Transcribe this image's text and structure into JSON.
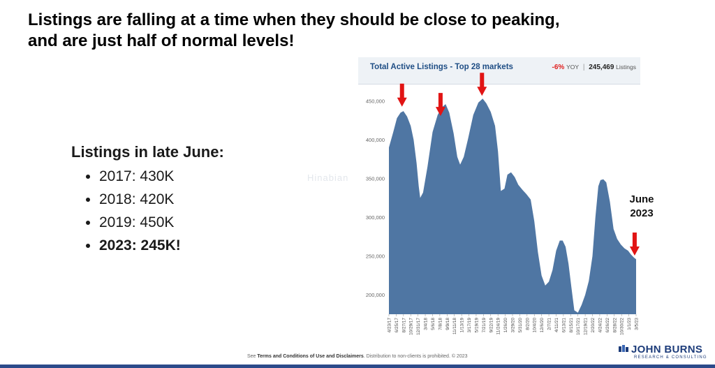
{
  "slide": {
    "title_line1": "Listings are falling at a time when they should be close to peaking,",
    "title_line2": "and are just half of normal levels!",
    "bullets_heading": "Listings in late June:",
    "bullets": [
      {
        "text": "2017: 430K",
        "bold": false
      },
      {
        "text": "2018: 420K",
        "bold": false
      },
      {
        "text": "2019: 450K",
        "bold": false
      },
      {
        "text": "2023: 245K!",
        "bold": true
      }
    ],
    "annotation": [
      "June",
      "2023"
    ],
    "watermark": "Hinabian",
    "footer_prefix": "See ",
    "footer_terms": "Terms and Conditions of Use and Disclaimers",
    "footer_suffix": ". Distribution to non-clients is prohibited. © 2023",
    "logo_name": "JOHN BURNS",
    "logo_tag": "RESEARCH & CONSULTING",
    "colors": {
      "area": "#4f76a3",
      "arrow": "#e11414",
      "panel": "#eef2f6",
      "brand": "#1d3c7a"
    }
  },
  "chart_data": {
    "type": "area",
    "title": "Total Active Listings - Top 28 markets",
    "stats": {
      "yoy_change": "-6%",
      "yoy_label": "YOY",
      "current_value": "245,469",
      "current_label": "Listings"
    },
    "xlabel": "",
    "ylabel": "",
    "ylim": [
      175000,
      465000
    ],
    "yticks": [
      200000,
      250000,
      300000,
      350000,
      400000,
      450000
    ],
    "ytick_labels": [
      "200,000",
      "250,000",
      "300,000",
      "350,000",
      "400,000",
      "450,000"
    ],
    "xtick_labels": [
      "4/23/17",
      "6/25/17",
      "8/27/17",
      "10/29/17",
      "12/31/17",
      "3/4/18",
      "5/6/18",
      "7/8/18",
      "9/9/18",
      "11/11/18",
      "1/13/19",
      "3/17/19",
      "5/19/19",
      "7/21/19",
      "9/22/19",
      "11/24/19",
      "1/26/20",
      "3/29/20",
      "5/31/20",
      "8/2/20",
      "10/4/20",
      "12/6/20",
      "2/7/21",
      "4/11/21",
      "6/13/21",
      "8/15/21",
      "10/17/21",
      "12/19/21",
      "2/20/22",
      "4/24/22",
      "6/26/22",
      "8/28/22",
      "10/30/22",
      "1/1/23",
      "3/5/23"
    ],
    "series": [
      {
        "values": [
          [
            0,
            390000
          ],
          [
            0.6,
            410000
          ],
          [
            1.1,
            428000
          ],
          [
            1.6,
            435000
          ],
          [
            2.0,
            437000
          ],
          [
            2.5,
            430000
          ],
          [
            3.0,
            418000
          ],
          [
            3.4,
            400000
          ],
          [
            3.8,
            370000
          ],
          [
            4.1,
            340000
          ],
          [
            4.3,
            325000
          ],
          [
            4.7,
            332000
          ],
          [
            5.3,
            365000
          ],
          [
            6.0,
            410000
          ],
          [
            6.7,
            432000
          ],
          [
            7.3,
            442000
          ],
          [
            7.8,
            446000
          ],
          [
            8.3,
            435000
          ],
          [
            8.9,
            408000
          ],
          [
            9.4,
            378000
          ],
          [
            9.8,
            368000
          ],
          [
            10.3,
            378000
          ],
          [
            10.9,
            402000
          ],
          [
            11.6,
            432000
          ],
          [
            12.3,
            448000
          ],
          [
            12.9,
            453000
          ],
          [
            13.4,
            447000
          ],
          [
            14.0,
            436000
          ],
          [
            14.6,
            418000
          ],
          [
            15.0,
            385000
          ],
          [
            15.4,
            334000
          ],
          [
            15.9,
            337000
          ],
          [
            16.3,
            355000
          ],
          [
            16.8,
            358000
          ],
          [
            17.3,
            352000
          ],
          [
            17.8,
            342000
          ],
          [
            18.4,
            335000
          ],
          [
            18.9,
            330000
          ],
          [
            19.5,
            323000
          ],
          [
            20.0,
            295000
          ],
          [
            20.5,
            255000
          ],
          [
            21.0,
            225000
          ],
          [
            21.5,
            212000
          ],
          [
            22.0,
            217000
          ],
          [
            22.5,
            232000
          ],
          [
            23.0,
            257000
          ],
          [
            23.5,
            270000
          ],
          [
            23.9,
            270000
          ],
          [
            24.3,
            262000
          ],
          [
            24.7,
            240000
          ],
          [
            25.1,
            210000
          ],
          [
            25.5,
            180000
          ],
          [
            26.0,
            177000
          ],
          [
            26.5,
            187000
          ],
          [
            27.0,
            200000
          ],
          [
            27.5,
            218000
          ],
          [
            28.0,
            250000
          ],
          [
            28.4,
            300000
          ],
          [
            28.8,
            340000
          ],
          [
            29.1,
            348000
          ],
          [
            29.5,
            349000
          ],
          [
            29.9,
            345000
          ],
          [
            30.4,
            320000
          ],
          [
            30.9,
            285000
          ],
          [
            31.4,
            272000
          ],
          [
            31.9,
            265000
          ],
          [
            32.4,
            260000
          ],
          [
            32.9,
            257000
          ],
          [
            33.3,
            252000
          ],
          [
            33.7,
            248000
          ],
          [
            34.0,
            246000
          ]
        ]
      }
    ],
    "markers": [
      {
        "label": "2017 peak",
        "x": 1.8,
        "y": 440000
      },
      {
        "label": "2018 peak",
        "x": 7.1,
        "y": 428000
      },
      {
        "label": "2019 peak",
        "x": 12.8,
        "y": 454000
      },
      {
        "label": "June 2023",
        "x": 33.8,
        "y": 248000
      }
    ]
  }
}
